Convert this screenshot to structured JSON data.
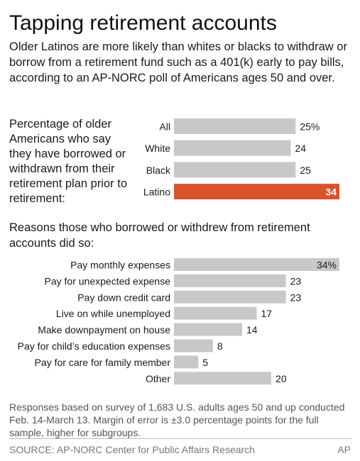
{
  "header": {
    "title": "Tapping retirement accounts",
    "subtitle": "Older Latinos are more likely than whites or blacks to withdraw or borrow from a retirement fund such as a 401(k) early to pay bills, according to an AP-NORC poll of Americans ages 50 and over."
  },
  "chart_data": [
    {
      "type": "bar",
      "orientation": "horizontal",
      "title": "Percentage of older Americans who say they have borrowed or withdrawn from their retirement plan prior to retirement:",
      "categories": [
        "All",
        "White",
        "Black",
        "Latino"
      ],
      "values": [
        25,
        24,
        25,
        34
      ],
      "value_labels": [
        "25%",
        "24",
        "25",
        "34"
      ],
      "highlight": "Latino",
      "xlim": [
        0,
        34
      ],
      "colors": {
        "default": "#c8c8c8",
        "highlight": "#d9532b"
      }
    },
    {
      "type": "bar",
      "orientation": "horizontal",
      "title": "Reasons those who borrowed or withdrew from retirement accounts did so:",
      "categories": [
        "Pay monthly expenses",
        "Pay for unexpected expense",
        "Pay down credit card",
        "Live on while unemployed",
        "Make downpayment on house",
        "Pay for child’s education expenses",
        "Pay for care for family member",
        "Other"
      ],
      "values": [
        34,
        23,
        23,
        17,
        14,
        8,
        5,
        20
      ],
      "value_labels": [
        "34%",
        "23",
        "23",
        "17",
        "14",
        "8",
        "5",
        "20"
      ],
      "xlim": [
        0,
        34
      ],
      "colors": {
        "default": "#c8c8c8"
      }
    }
  ],
  "footer": {
    "note": "Responses based on survey of 1,683 U.S. adults ages 50 and up conducted Feb. 14-March 13. Margin of error is ±3.0 percentage points for the full sample, higher for subgroups.",
    "source": "SOURCE: AP-NORC Center for Public Affairs Research",
    "credit": "AP"
  }
}
